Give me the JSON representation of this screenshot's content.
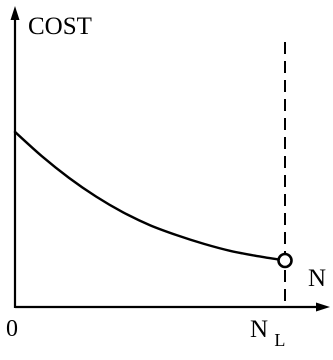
{
  "chart_data": {
    "type": "line",
    "ylabel": "COST",
    "xlabel": "N",
    "origin_label": "0",
    "limit_label": {
      "main": "N",
      "subscript": "L"
    },
    "series": [
      {
        "x": [
          0,
          0.1,
          0.2,
          0.3,
          0.4,
          0.5,
          0.6,
          0.7,
          0.8,
          0.9,
          1.0
        ],
        "values": [
          0.61,
          0.525,
          0.45,
          0.385,
          0.33,
          0.285,
          0.25,
          0.22,
          0.195,
          0.177,
          0.162
        ]
      }
    ],
    "end_marker": {
      "x": 1.0,
      "y": 0.162,
      "style": "open-circle"
    },
    "limit_line": {
      "x": 1.0,
      "style": "dashed"
    },
    "xlim": [
      0,
      1.0
    ],
    "ylim": [
      0,
      1.0
    ],
    "grid": false,
    "colors": {
      "line": "#000000",
      "background": "#ffffff"
    }
  }
}
